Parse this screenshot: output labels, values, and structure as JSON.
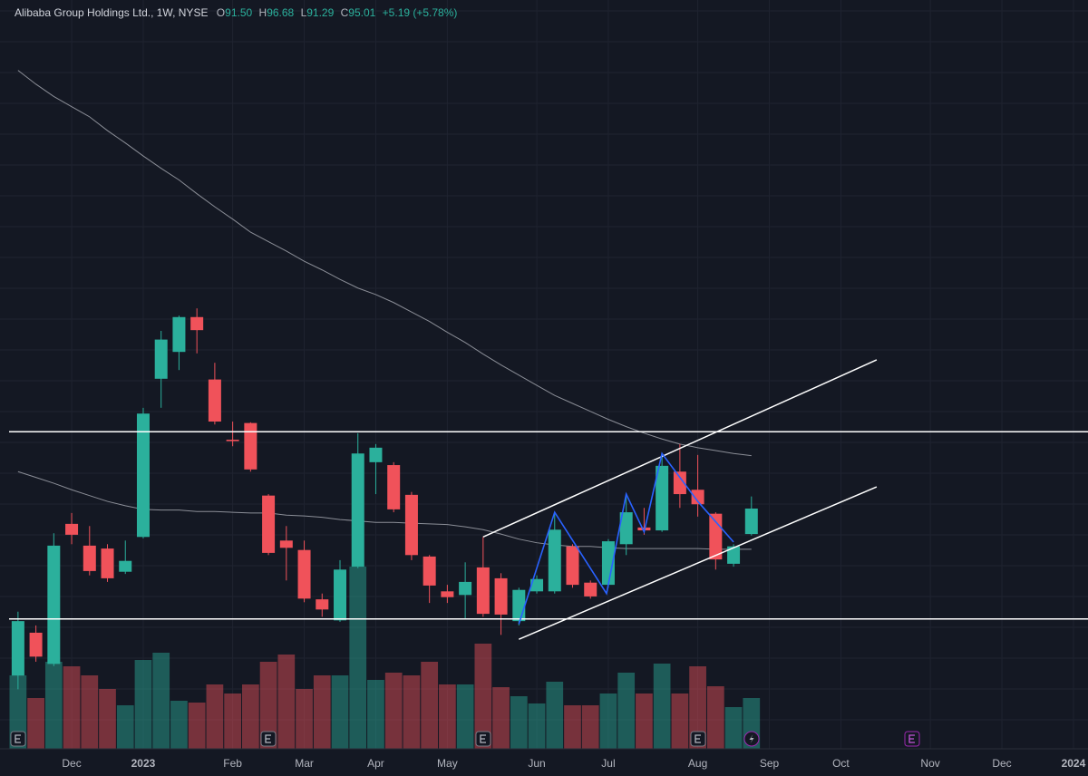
{
  "header": {
    "symbol": "Alibaba Group Holdings Ltd., 1W, NYSE",
    "ohlc": [
      {
        "key": "O",
        "value": "91.50"
      },
      {
        "key": "H",
        "value": "96.68"
      },
      {
        "key": "L",
        "value": "91.29"
      },
      {
        "key": "C",
        "value": "95.01"
      }
    ],
    "change": "+5.19 (+5.78%)"
  },
  "chart_data": {
    "type": "candlestick",
    "categories": [
      null,
      null,
      null,
      "Dec",
      null,
      null,
      null,
      "2023",
      null,
      null,
      null,
      null,
      "Feb",
      null,
      null,
      null,
      "Mar",
      null,
      null,
      null,
      "Apr",
      null,
      null,
      null,
      "May",
      null,
      null,
      null,
      null,
      "Jun",
      null,
      null,
      null,
      "Jul",
      null,
      null,
      null,
      null,
      "Aug",
      null,
      null,
      null,
      "Sep",
      null,
      null,
      null,
      "Oct",
      null,
      null,
      null,
      null,
      "Nov",
      null,
      null,
      null,
      "Dec",
      null,
      null,
      null,
      "2024"
    ],
    "open": [
      72.0,
      77.9,
      73.6,
      92.9,
      89.9,
      89.5,
      86.3,
      91.1,
      112.9,
      116.6,
      121.4,
      112.8,
      104.5,
      106.8,
      96.8,
      90.6,
      89.3,
      82.5,
      79.6,
      87.0,
      101.4,
      101.0,
      96.9,
      88.4,
      83.6,
      83.1,
      86.9,
      85.4,
      79.5,
      83.6,
      83.6,
      89.8,
      84.8,
      84.5,
      90.1,
      92.4,
      92.0,
      100.1,
      97.6,
      94.3,
      87.4,
      91.5,
      null,
      null,
      null,
      null,
      null,
      null,
      null,
      null,
      null,
      null,
      null,
      null,
      null,
      null,
      null,
      null,
      null,
      null
    ],
    "high": [
      80.8,
      78.9,
      91.6,
      94.4,
      92.6,
      90.1,
      90.6,
      108.9,
      119.5,
      121.6,
      122.6,
      115.1,
      107.0,
      106.9,
      97.0,
      92.6,
      90.6,
      83.3,
      87.9,
      105.4,
      103.9,
      101.4,
      97.3,
      88.6,
      84.5,
      87.6,
      91.1,
      86.1,
      84.1,
      85.8,
      94.5,
      90.1,
      85.1,
      90.8,
      97.1,
      95.1,
      102.6,
      103.9,
      102.4,
      94.5,
      90.1,
      96.68,
      null,
      null,
      null,
      null,
      null,
      null,
      null,
      null,
      null,
      null,
      null,
      null,
      null,
      null,
      null,
      null,
      null,
      null
    ],
    "low": [
      70.1,
      73.9,
      73.3,
      90.1,
      85.8,
      84.9,
      86.0,
      90.9,
      108.9,
      114.1,
      116.4,
      106.6,
      103.6,
      100.1,
      88.6,
      85.1,
      82.1,
      80.1,
      79.4,
      86.8,
      97.0,
      94.5,
      87.9,
      82.0,
      82.0,
      79.9,
      80.1,
      77.6,
      78.9,
      83.3,
      83.3,
      84.1,
      82.6,
      84.1,
      88.6,
      91.4,
      91.8,
      95.1,
      93.9,
      86.6,
      87.0,
      91.29,
      null,
      null,
      null,
      null,
      null,
      null,
      null,
      null,
      null,
      null,
      null,
      null,
      null,
      null,
      null,
      null,
      null,
      null
    ],
    "close": [
      79.5,
      74.6,
      89.9,
      91.4,
      86.4,
      85.4,
      87.8,
      108.1,
      118.3,
      121.4,
      119.6,
      107.0,
      104.3,
      100.4,
      88.9,
      89.6,
      82.6,
      81.1,
      86.6,
      102.6,
      103.4,
      94.9,
      88.6,
      84.4,
      82.8,
      84.9,
      80.5,
      80.4,
      83.8,
      85.3,
      92.1,
      84.5,
      82.9,
      90.5,
      94.5,
      92.0,
      100.9,
      97.0,
      95.6,
      88.0,
      89.8,
      95.01,
      null,
      null,
      null,
      null,
      null,
      null,
      null,
      null,
      null,
      null,
      null,
      null,
      null,
      null,
      null,
      null,
      null,
      null
    ],
    "volume": [
      81,
      56,
      96,
      91,
      81,
      66,
      48,
      98,
      106,
      53,
      51,
      71,
      61,
      71,
      96,
      104,
      66,
      81,
      81,
      201,
      76,
      84,
      81,
      96,
      71,
      71,
      116,
      68,
      58,
      50,
      74,
      48,
      48,
      61,
      84,
      61,
      94,
      61,
      91,
      69,
      46,
      56,
      null,
      null,
      null,
      null,
      null,
      null,
      null,
      null,
      null,
      null,
      null,
      null,
      null,
      null,
      null,
      null,
      null,
      null
    ],
    "ylim": [
      61.9,
      165.1
    ],
    "up_color": "#2bb09c",
    "down_color": "#f0525a",
    "moving_averages": [
      {
        "color": "#8b8e97",
        "values": [
          155.4,
          153.5,
          151.8,
          150.4,
          149.0,
          147.1,
          145.4,
          143.6,
          141.9,
          140.3,
          138.4,
          136.6,
          134.9,
          133.1,
          131.8,
          130.5,
          129.1,
          127.9,
          126.6,
          125.4,
          124.5,
          123.4,
          122.1,
          120.8,
          119.3,
          117.9,
          116.3,
          114.8,
          113.4,
          112.0,
          110.6,
          109.5,
          108.4,
          107.3,
          106.3,
          105.4,
          104.6,
          103.9,
          103.4,
          103.0,
          102.6,
          102.3,
          null,
          null,
          null,
          null,
          null,
          null,
          null,
          null,
          null,
          null,
          null,
          null,
          null,
          null,
          null,
          null,
          null,
          null
        ]
      },
      {
        "color": "#8b8e97",
        "values": [
          100.1,
          99.3,
          98.5,
          97.6,
          96.8,
          96.0,
          95.4,
          94.9,
          94.8,
          94.8,
          94.6,
          94.6,
          94.5,
          94.4,
          94.4,
          94.1,
          94.0,
          93.8,
          93.5,
          93.3,
          93.1,
          93.1,
          93.0,
          92.9,
          92.8,
          92.5,
          92.1,
          91.5,
          90.8,
          90.3,
          90.0,
          89.8,
          89.8,
          89.6,
          89.5,
          89.5,
          89.5,
          89.5,
          89.5,
          89.4,
          89.4,
          89.4,
          null,
          null,
          null,
          null,
          null,
          null,
          null,
          null,
          null,
          null,
          null,
          null,
          null,
          null,
          null,
          null,
          null,
          null
        ]
      }
    ],
    "hlines": [
      105.6,
      79.8
    ],
    "trend_lines": [
      {
        "x": [
          26,
          48
        ],
        "y": [
          91.1,
          115.5
        ]
      },
      {
        "x": [
          28,
          48
        ],
        "y": [
          77.0,
          98.0
        ]
      }
    ],
    "zigzag": {
      "color": "#2962ff",
      "x": [
        28,
        30,
        32.9,
        34,
        35,
        36,
        38,
        40
      ],
      "y": [
        79.1,
        94.5,
        83.3,
        97.0,
        91.8,
        102.6,
        96.0,
        90.4
      ]
    }
  }
}
